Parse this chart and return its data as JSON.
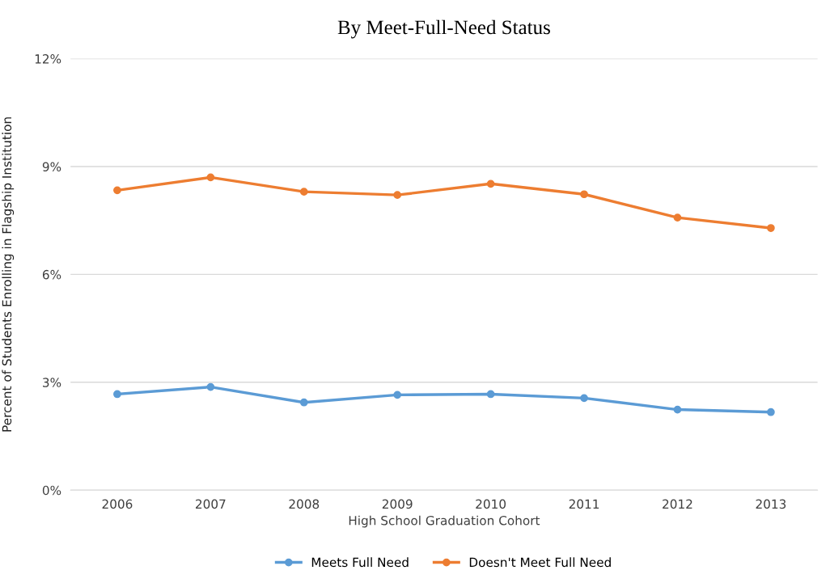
{
  "chart_data": {
    "type": "line",
    "title": "By Meet-Full-Need Status",
    "categories": [
      "2006",
      "2007",
      "2008",
      "2009",
      "2010",
      "2011",
      "2012",
      "2013"
    ],
    "series": [
      {
        "name": "Meets Full Need",
        "color": "#5b9bd5",
        "values": [
          2.67,
          2.87,
          2.44,
          2.65,
          2.67,
          2.56,
          2.24,
          2.17
        ]
      },
      {
        "name": "Doesn't Meet Full Need",
        "color": "#ed7d31",
        "values": [
          8.34,
          8.7,
          8.3,
          8.21,
          8.52,
          8.23,
          7.58,
          7.29
        ]
      }
    ],
    "xlabel": "High School Graduation Cohort",
    "ylabel": "Percent of Students Enrolling in Flagship Institution",
    "ylim": [
      0,
      12
    ],
    "yticks": [
      {
        "value": 0,
        "label": "0%"
      },
      {
        "value": 3,
        "label": "3%"
      },
      {
        "value": 6,
        "label": "6%"
      },
      {
        "value": 9,
        "label": "9%"
      },
      {
        "value": 12,
        "label": "12%"
      }
    ],
    "grid": "y",
    "legend": "bottom",
    "marker": "circle",
    "line_style": "solid"
  }
}
